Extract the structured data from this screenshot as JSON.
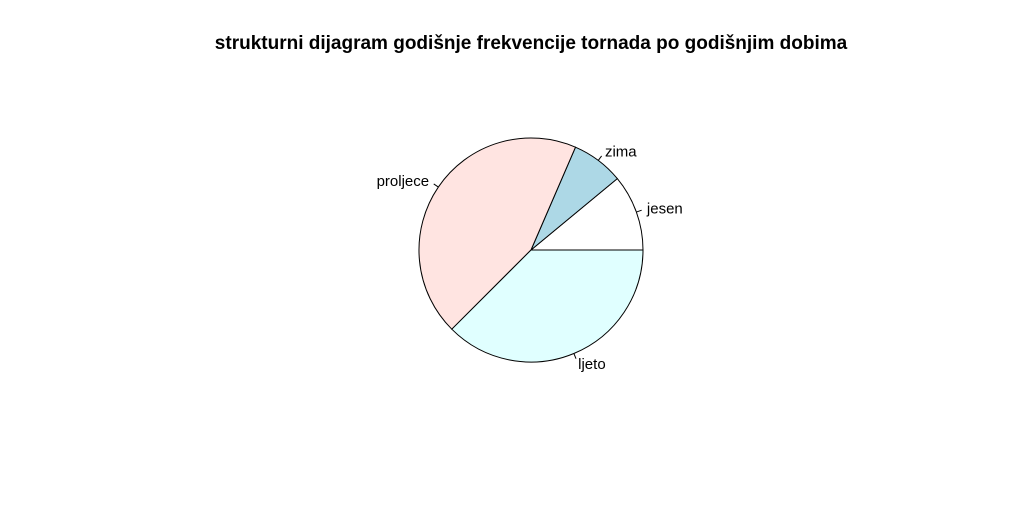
{
  "chart_data": {
    "type": "pie",
    "title": "strukturni dijagram godišnje frekvencije tornada po godišnjim dobima",
    "categories": [
      "jesen",
      "zima",
      "proljece",
      "ljeto"
    ],
    "values": [
      11,
      7.5,
      44,
      37.5
    ],
    "colors": [
      "#ffffff",
      "#add8e6",
      "#ffe4e1",
      "#e0ffff"
    ],
    "start_angle_deg": 0,
    "direction": "counterclockwise"
  }
}
